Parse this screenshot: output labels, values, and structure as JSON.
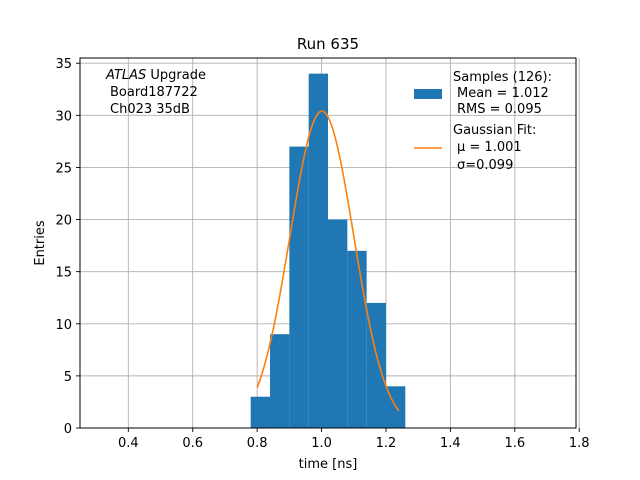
{
  "chart_data": {
    "type": "bar",
    "title": "Run 635",
    "xlabel": "time [ns]",
    "ylabel": "Entries",
    "xlim": [
      0.25,
      1.79
    ],
    "ylim": [
      0,
      35.5
    ],
    "grid": true,
    "x_ticks": [
      "0.4",
      "0.6",
      "0.8",
      "1.0",
      "1.2",
      "1.4",
      "1.6",
      "1.8"
    ],
    "x_tick_values": [
      0.4,
      0.6,
      0.8,
      1.0,
      1.2,
      1.4,
      1.6,
      1.8
    ],
    "y_ticks": [
      "0",
      "5",
      "10",
      "15",
      "20",
      "25",
      "30",
      "35"
    ],
    "y_tick_values": [
      0,
      5,
      10,
      15,
      20,
      25,
      30,
      35
    ],
    "bin_edges": [
      0.78,
      0.84,
      0.9,
      0.96,
      1.02,
      1.08,
      1.14,
      1.2,
      1.26
    ],
    "counts": [
      3,
      9,
      27,
      34,
      20,
      17,
      12,
      4
    ],
    "annotation": {
      "line1_italic": "ATLAS",
      "line1_rest": " Upgrade",
      "line2": "Board187722",
      "line3": "Ch023 35dB"
    },
    "series": [
      {
        "name": "Samples (126):",
        "legend_lines": [
          "Samples (126):",
          "Mean = 1.012",
          "RMS = 0.095"
        ],
        "color": "#1f77b4",
        "kind": "histogram"
      },
      {
        "name": "Gaussian Fit:",
        "legend_lines": [
          "Gaussian Fit:",
          "μ = 1.001",
          "σ=0.099"
        ],
        "color": "#ff7f0e",
        "kind": "line",
        "fit": {
          "mu": 1.001,
          "sigma": 0.099,
          "amplitude": 30.4,
          "x_range": [
            0.8,
            1.24
          ]
        }
      }
    ],
    "legend_position": "top-right"
  }
}
